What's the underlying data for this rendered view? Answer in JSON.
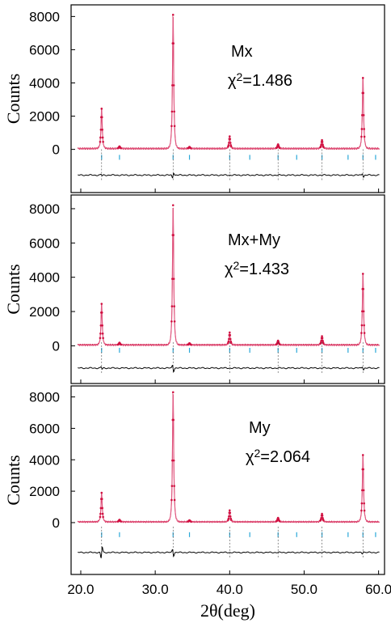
{
  "figure": {
    "xlabel": "2θ(deg)",
    "ylabel": "Counts",
    "xlim": [
      18.7,
      60.8
    ],
    "xticks": [
      20.0,
      30.0,
      40.0,
      50.0,
      60.0
    ],
    "xtick_labels": [
      "20.0",
      "30.0",
      "40.0",
      "50.0",
      "60.0"
    ]
  },
  "colors": {
    "observed": "#d01040",
    "calculated": "#e87aa0",
    "difference": "#000000",
    "reflection_marks": "#2aa8d8",
    "frame": "#000000"
  },
  "chart_data": [
    {
      "type": "line",
      "panel": "top",
      "annotation": {
        "model": "Mx",
        "chi_prefix": "χ",
        "chi_sup": "2",
        "chi_value": "=1.486"
      },
      "ylabel": "Counts",
      "yticks": [
        0,
        2000,
        4000,
        6000,
        8000
      ],
      "ylim": [
        -2600,
        8700
      ],
      "baseline": 50,
      "peaks": [
        {
          "x": 22.8,
          "y": 2450
        },
        {
          "x": 25.2,
          "y": 180
        },
        {
          "x": 32.4,
          "y": 8100
        },
        {
          "x": 34.6,
          "y": 150
        },
        {
          "x": 40.0,
          "y": 780
        },
        {
          "x": 46.5,
          "y": 300
        },
        {
          "x": 52.4,
          "y": 560
        },
        {
          "x": 57.9,
          "y": 4300
        }
      ],
      "reflection_positions": [
        22.8,
        25.2,
        32.4,
        34.6,
        40.0,
        42.7,
        46.5,
        49.0,
        52.4,
        55.9,
        57.9,
        59.6
      ],
      "difference_offset": -1550,
      "difference_features": [
        {
          "x": 22.8,
          "amp": -100
        },
        {
          "x": 32.4,
          "amp": 350
        },
        {
          "x": 57.9,
          "amp": -250
        }
      ]
    },
    {
      "type": "line",
      "panel": "middle",
      "annotation": {
        "model": "Mx+My",
        "chi_prefix": "χ",
        "chi_sup": "2",
        "chi_value": "=1.433"
      },
      "ylabel": "Counts",
      "yticks": [
        0,
        2000,
        4000,
        6000,
        8000
      ],
      "ylim": [
        -2200,
        8800
      ],
      "baseline": 50,
      "peaks": [
        {
          "x": 22.8,
          "y": 2450
        },
        {
          "x": 25.2,
          "y": 180
        },
        {
          "x": 32.4,
          "y": 8200
        },
        {
          "x": 34.6,
          "y": 150
        },
        {
          "x": 40.0,
          "y": 780
        },
        {
          "x": 46.5,
          "y": 300
        },
        {
          "x": 52.4,
          "y": 560
        },
        {
          "x": 57.9,
          "y": 4200
        }
      ],
      "reflection_positions": [
        22.8,
        25.2,
        32.4,
        34.6,
        40.0,
        42.7,
        46.5,
        49.0,
        52.4,
        55.9,
        57.9,
        59.6
      ],
      "difference_offset": -1300,
      "difference_features": [
        {
          "x": 22.8,
          "amp": -150
        },
        {
          "x": 32.4,
          "amp": -400
        },
        {
          "x": 57.9,
          "amp": -200
        }
      ]
    },
    {
      "type": "line",
      "panel": "bottom",
      "annotation": {
        "model": "My",
        "chi_prefix": "χ",
        "chi_sup": "2",
        "chi_value": "=2.064"
      },
      "ylabel": "Counts",
      "yticks": [
        0,
        2000,
        4000,
        6000,
        8000
      ],
      "ylim": [
        -3300,
        8700
      ],
      "baseline": 50,
      "peaks": [
        {
          "x": 22.8,
          "y": 1900
        },
        {
          "x": 25.2,
          "y": 180
        },
        {
          "x": 32.4,
          "y": 8300
        },
        {
          "x": 34.6,
          "y": 150
        },
        {
          "x": 40.0,
          "y": 780
        },
        {
          "x": 46.5,
          "y": 300
        },
        {
          "x": 52.4,
          "y": 560
        },
        {
          "x": 57.9,
          "y": 4300
        }
      ],
      "reflection_positions": [
        22.8,
        25.2,
        32.4,
        34.6,
        40.0,
        42.7,
        46.5,
        49.0,
        52.4,
        55.9,
        57.9,
        59.6
      ],
      "difference_offset": -1900,
      "difference_features": [
        {
          "x": 22.8,
          "amp": 800
        },
        {
          "x": 32.4,
          "amp": -450
        },
        {
          "x": 57.9,
          "amp": 150
        }
      ]
    }
  ]
}
